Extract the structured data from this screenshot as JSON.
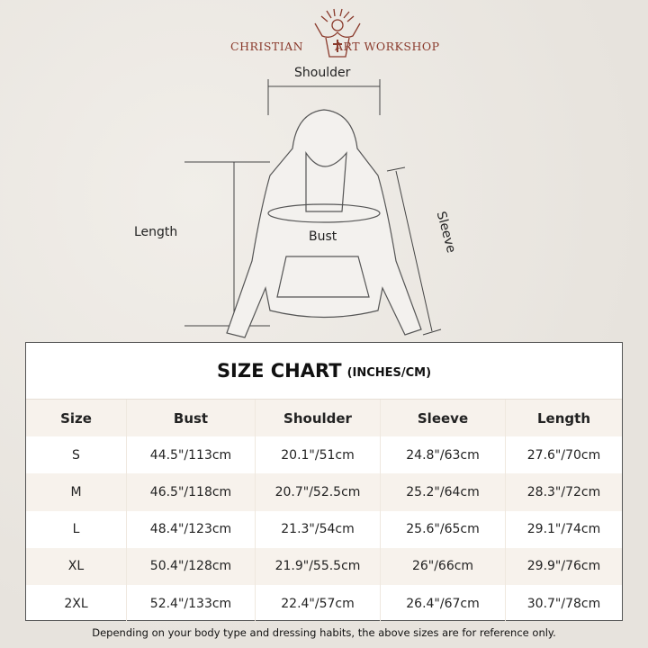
{
  "brand": {
    "left": "CHRISTIAN",
    "right": "ART WORKSHOP"
  },
  "diagram": {
    "shoulder": "Shoulder",
    "length": "Length",
    "bust": "Bust",
    "sleeve": "Sleeve"
  },
  "table": {
    "title": "SIZE CHART",
    "unit": "(INCHES/CM)",
    "headers": [
      "Size",
      "Bust",
      "Shoulder",
      "Sleeve",
      "Length"
    ],
    "rows": [
      [
        "S",
        "44.5\"/113cm",
        "20.1\"/51cm",
        "24.8\"/63cm",
        "27.6\"/70cm"
      ],
      [
        "M",
        "46.5\"/118cm",
        "20.7\"/52.5cm",
        "25.2\"/64cm",
        "28.3\"/72cm"
      ],
      [
        "L",
        "48.4\"/123cm",
        "21.3\"/54cm",
        "25.6\"/65cm",
        "29.1\"/74cm"
      ],
      [
        "XL",
        "50.4\"/128cm",
        "21.9\"/55.5cm",
        "26\"/66cm",
        "29.9\"/76cm"
      ],
      [
        "2XL",
        "52.4\"/133cm",
        "22.4\"/57cm",
        "26.4\"/67cm",
        "30.7\"/78cm"
      ]
    ]
  },
  "footer": "Depending on your body type and dressing habits, the above sizes are for reference only.",
  "colors": {
    "brand": "#8a3a2c",
    "alt_row": "#f7f2ec"
  }
}
